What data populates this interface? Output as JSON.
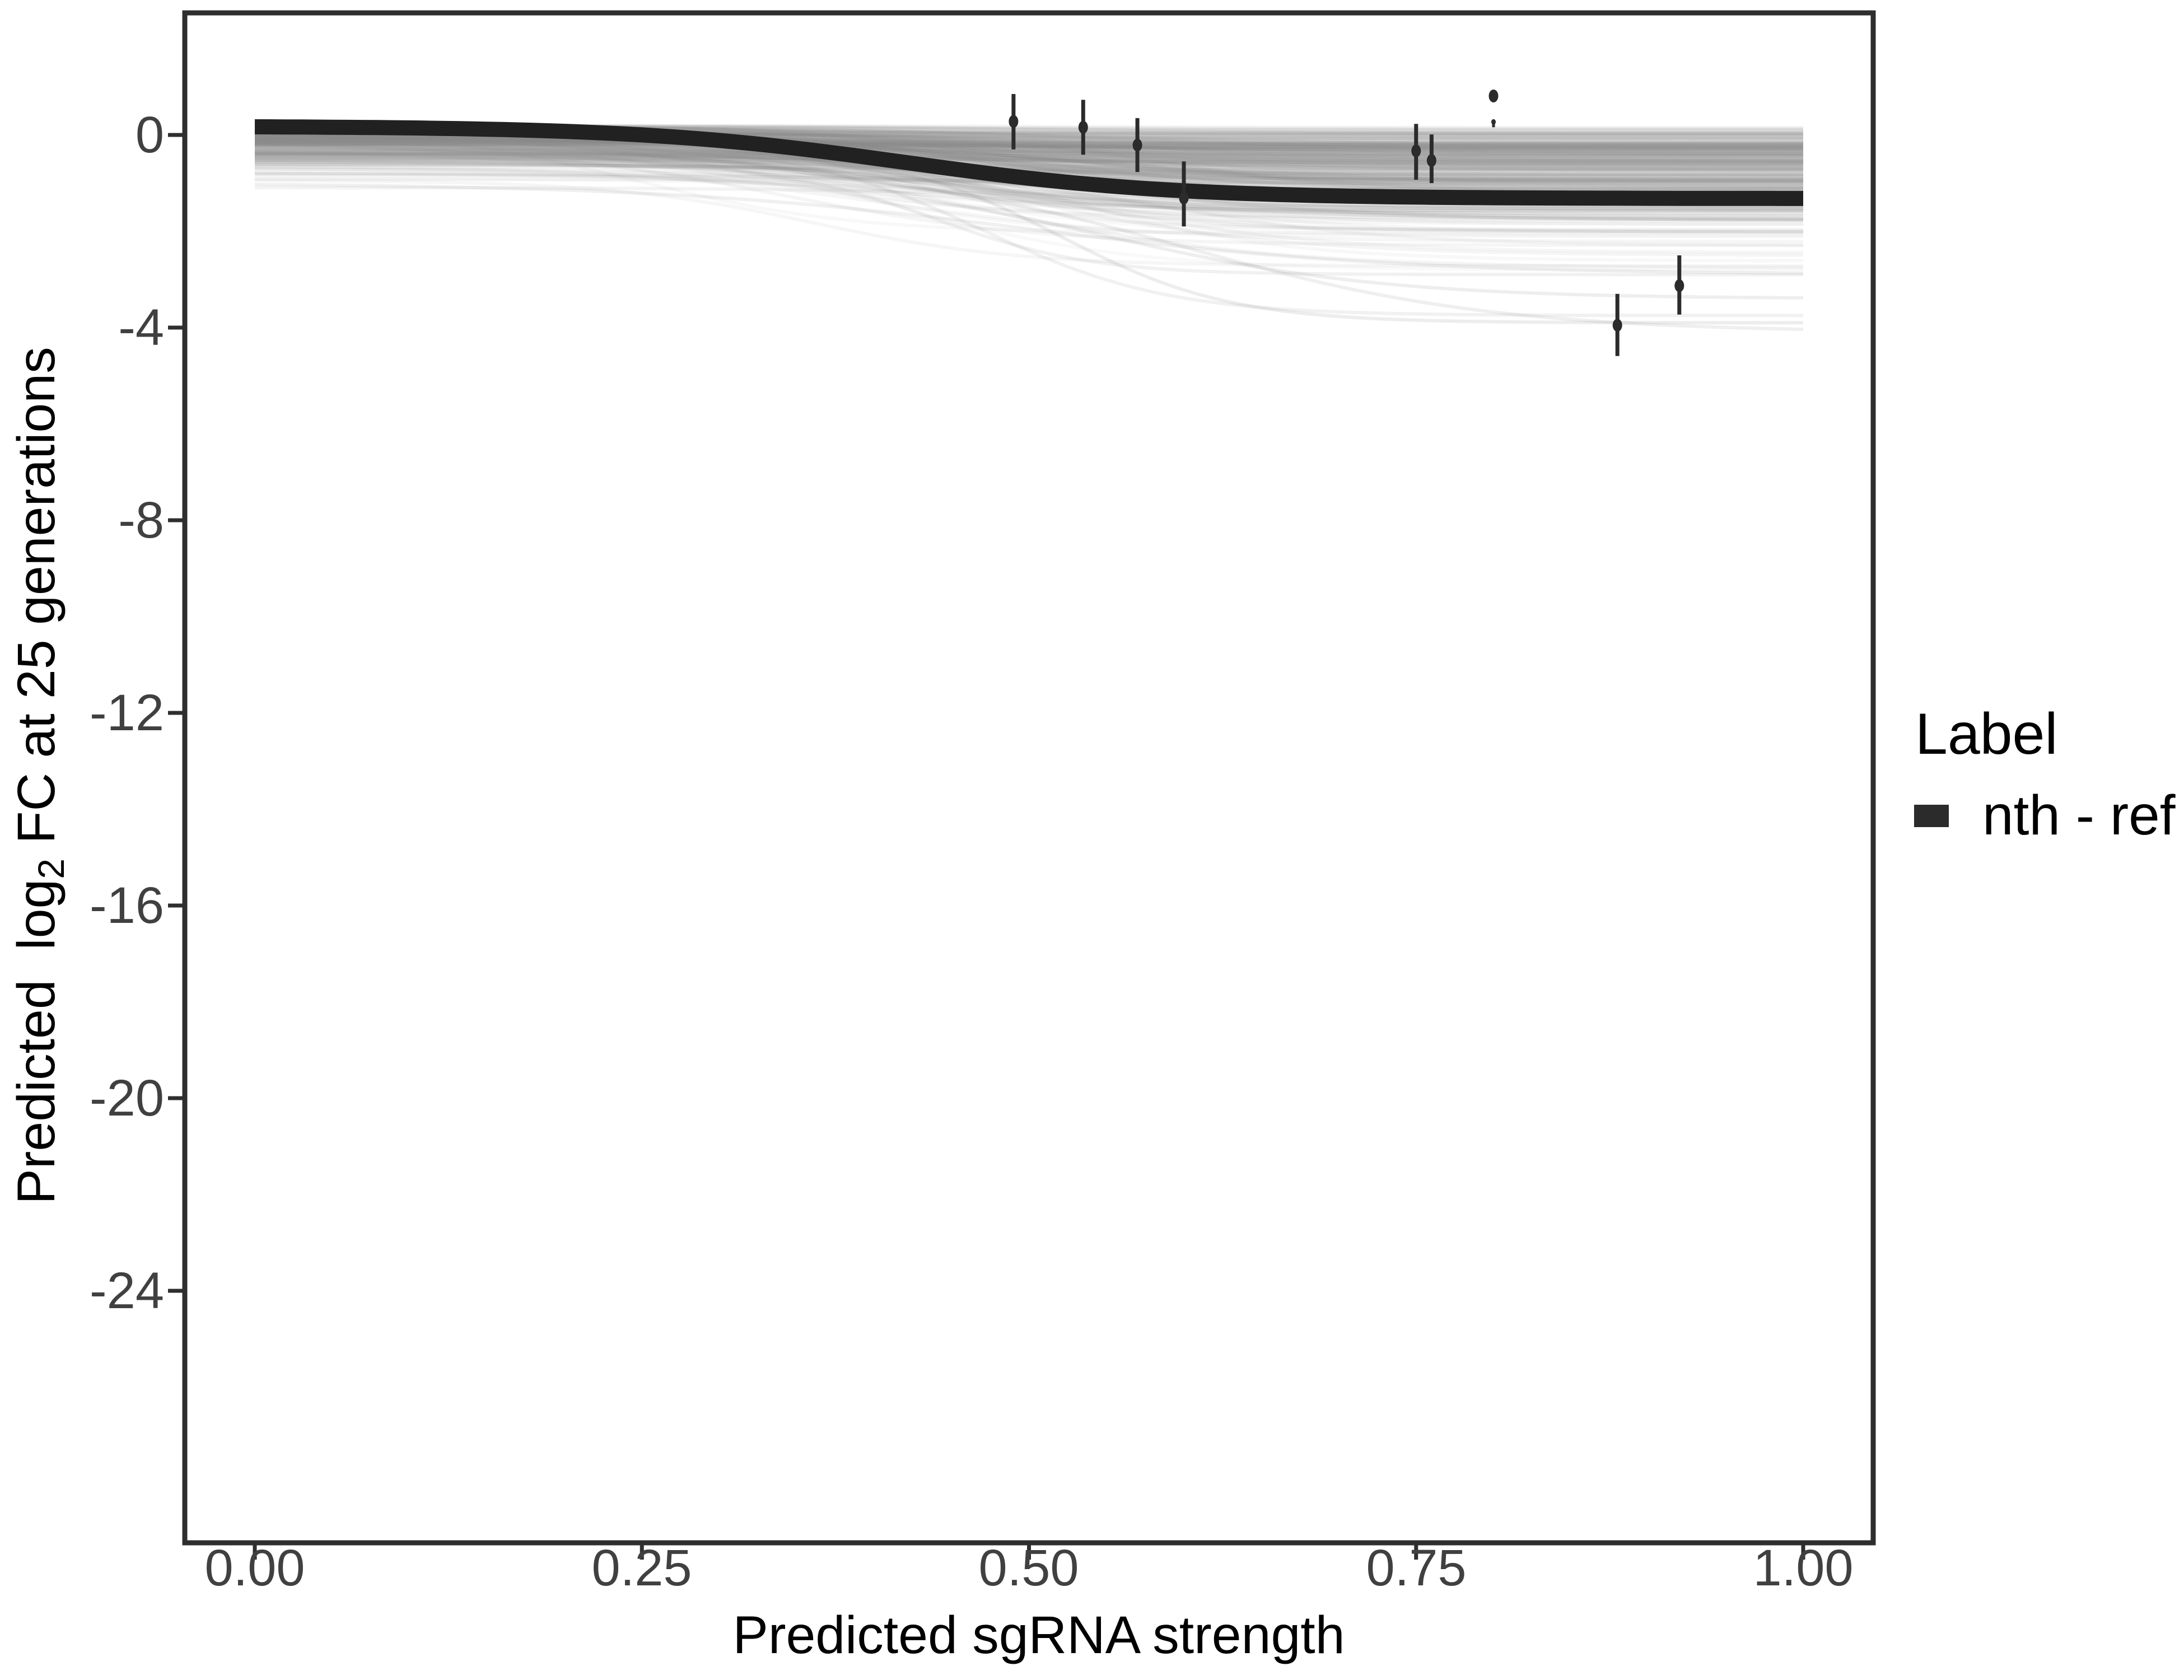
{
  "figure": {
    "background": "#ffffff",
    "kind": "posterior predictive fit plot"
  },
  "colors": {
    "axis_text": "#404040",
    "axis_line": "#2e2e2e",
    "title_text": "#000000",
    "posterior_gray": "#8c8c8c",
    "point_black": "#2b2b2b",
    "mean_line": "#212121",
    "legend_key": "#2b2b2b",
    "background": "#ffffff"
  },
  "chart_data": {
    "type": "line",
    "title": "",
    "xlabel": "Predicted sgRNA strength",
    "ylabel": "Predicted  log2 FC at 25 generations",
    "ylabel_parts": {
      "prefix": "Predicted  log",
      "subscript": "2",
      "suffix": " FC at 25 generations"
    },
    "xlim": [
      0,
      1
    ],
    "ylim": [
      -29,
      2.4
    ],
    "grid": "off",
    "legend_position": "right",
    "x_ticks": {
      "values": [
        0,
        0.25,
        0.5,
        0.75,
        1.0
      ],
      "labels": [
        "0.00",
        "0.25",
        "0.50",
        "0.75",
        "1.00"
      ]
    },
    "y_ticks": {
      "values": [
        0,
        -4,
        -8,
        -12,
        -16,
        -20,
        -24
      ],
      "labels": [
        "0",
        "-4",
        "-8",
        "-12",
        "-16",
        "-20",
        "-24"
      ]
    },
    "legend": {
      "title": "Label",
      "entries": [
        {
          "label": "nth - ref",
          "color": "#2b2b2b"
        }
      ]
    },
    "mean_curve": {
      "series": "nth - ref",
      "shape": "sigmoid",
      "top": 0.18,
      "drop": 1.5,
      "midpoint": 0.42,
      "scale": 0.085,
      "right_end_value": -1.32,
      "color": "#212121",
      "width": 27
    },
    "posterior_draws": {
      "count": 320,
      "seed": 20240817,
      "color": "#8c8c8c",
      "width": 6,
      "alpha_min": 0.05,
      "alpha_max": 0.11,
      "top_mean": 0.2,
      "top_sd": 0.4,
      "drop_min": 0.05,
      "drop_sd": 0.95,
      "flat_fraction": 0.3,
      "flat_scale": 0.25,
      "mid_mean": 0.44,
      "mid_sd": 0.07,
      "scale_min": 0.06,
      "scale_sd": 0.03,
      "bottom_soft_limit": -2.7,
      "tail_compress": 0.22
    },
    "deep_draws": [
      {
        "a": -0.3,
        "d": 3.6,
        "m": 0.52,
        "s": 0.055,
        "alpha": 0.16
      },
      {
        "a": -0.55,
        "d": 3.55,
        "m": 0.6,
        "s": 0.1,
        "alpha": 0.14
      },
      {
        "a": -0.2,
        "d": 3.55,
        "m": 0.47,
        "s": 0.06,
        "alpha": 0.12
      },
      {
        "a": -0.8,
        "d": 2.6,
        "m": 0.55,
        "s": 0.09,
        "alpha": 0.15
      },
      {
        "a": -1.0,
        "d": 1.9,
        "m": 0.5,
        "s": 0.12,
        "alpha": 0.13
      },
      {
        "a": -0.6,
        "d": 2.3,
        "m": 0.44,
        "s": 0.05,
        "alpha": 0.12
      }
    ],
    "points": [
      {
        "x": 0.49,
        "y": 0.28,
        "lo": -0.3,
        "hi": 0.85
      },
      {
        "x": 0.535,
        "y": 0.16,
        "lo": -0.41,
        "hi": 0.73
      },
      {
        "x": 0.57,
        "y": -0.21,
        "lo": -0.77,
        "hi": 0.35
      },
      {
        "x": 0.6,
        "y": -1.31,
        "lo": -1.9,
        "hi": -0.55
      },
      {
        "x": 0.75,
        "y": -0.33,
        "lo": -0.93,
        "hi": 0.23
      },
      {
        "x": 0.76,
        "y": -0.53,
        "lo": -1.0,
        "hi": 0.01
      },
      {
        "x": 0.8,
        "y": 0.81
      },
      {
        "x": 0.8,
        "y": 0.27,
        "lo": 0.16,
        "hi": 0.31,
        "tiny": true
      },
      {
        "x": 0.88,
        "y": -3.95,
        "lo": -4.59,
        "hi": -3.3
      },
      {
        "x": 0.92,
        "y": -3.13,
        "lo": -3.73,
        "hi": -2.5
      }
    ]
  }
}
